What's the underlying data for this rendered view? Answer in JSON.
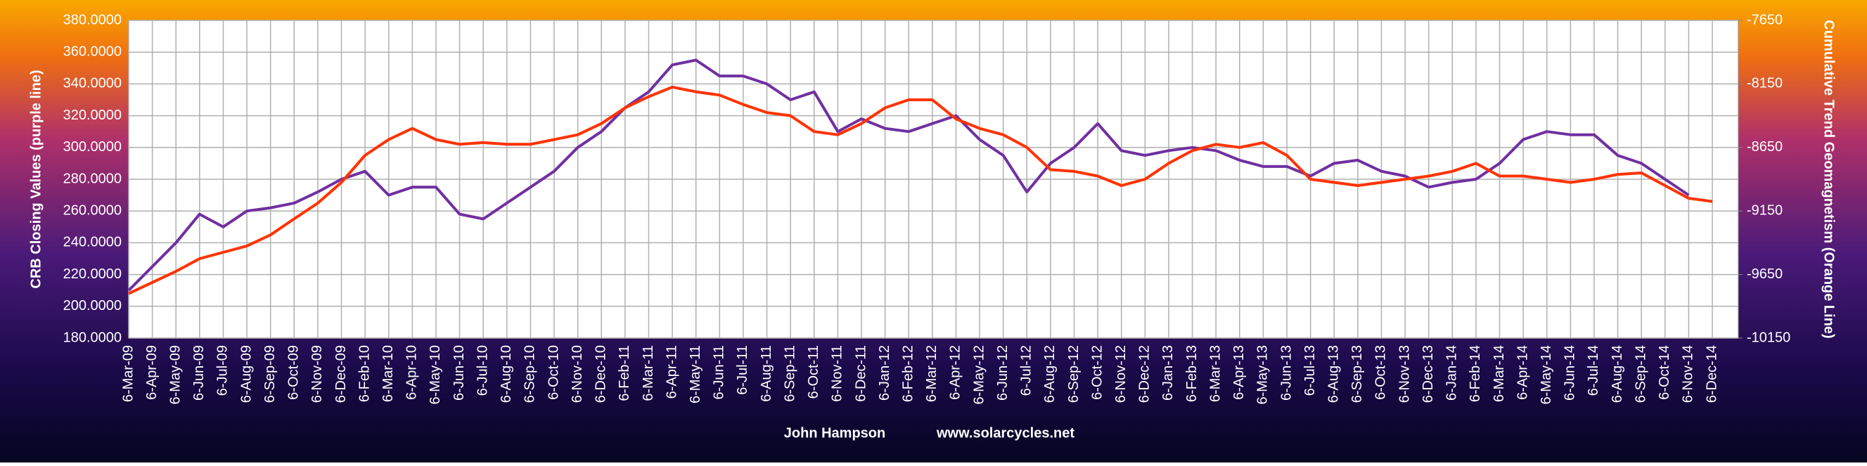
{
  "chart_data": {
    "type": "line",
    "categories": [
      "6-Mar-09",
      "6-Apr-09",
      "6-May-09",
      "6-Jun-09",
      "6-Jul-09",
      "6-Aug-09",
      "6-Sep-09",
      "6-Oct-09",
      "6-Nov-09",
      "6-Dec-09",
      "6-Feb-10",
      "6-Mar-10",
      "6-Apr-10",
      "6-May-10",
      "6-Jun-10",
      "6-Jul-10",
      "6-Aug-10",
      "6-Sep-10",
      "6-Oct-10",
      "6-Nov-10",
      "6-Dec-10",
      "6-Feb-11",
      "6-Mar-11",
      "6-Apr-11",
      "6-May-11",
      "6-Jun-11",
      "6-Jul-11",
      "6-Aug-11",
      "6-Sep-11",
      "6-Oct-11",
      "6-Nov-11",
      "6-Dec-11",
      "6-Jan-12",
      "6-Feb-12",
      "6-Mar-12",
      "6-Apr-12",
      "6-May-12",
      "6-Jun-12",
      "6-Jul-12",
      "6-Aug-12",
      "6-Sep-12",
      "6-Oct-12",
      "6-Nov-12",
      "6-Dec-12",
      "6-Jan-13",
      "6-Feb-13",
      "6-Mar-13",
      "6-Apr-13",
      "6-May-13",
      "6-Jun-13",
      "6-Jul-13",
      "6-Aug-13",
      "6-Sep-13",
      "6-Oct-13",
      "6-Nov-13",
      "6-Dec-13",
      "6-Jan-14",
      "6-Feb-14",
      "6-Mar-14",
      "6-Apr-14",
      "6-May-14",
      "6-Jun-14",
      "6-Jul-14",
      "6-Aug-14",
      "6-Sep-14",
      "6-Oct-14",
      "6-Nov-14",
      "6-Dec-14"
    ],
    "series": [
      {
        "color": "#7030a0",
        "values": [
          210,
          225,
          240,
          258,
          250,
          260,
          262,
          265,
          272,
          280,
          285,
          270,
          275,
          275,
          258,
          255,
          265,
          275,
          285,
          300,
          310,
          325,
          335,
          352,
          355,
          345,
          345,
          340,
          330,
          335,
          310,
          318,
          312,
          310,
          315,
          320,
          305,
          295,
          272,
          290,
          300,
          315,
          298,
          295,
          298,
          300,
          298,
          292,
          288,
          288,
          282,
          290,
          292,
          285,
          282,
          275,
          278,
          280,
          290,
          305,
          310,
          308,
          308,
          295,
          290,
          280,
          270,
          null
        ]
      },
      {
        "color": "#ff3300",
        "axis": "y2",
        "values": [
          -9800,
          -9712,
          -9625,
          -9525,
          -9475,
          -9425,
          -9338,
          -9212,
          -9088,
          -8925,
          -8712,
          -8588,
          -8500,
          -8588,
          -8625,
          -8612,
          -8625,
          -8625,
          -8588,
          -8550,
          -8462,
          -8338,
          -8250,
          -8175,
          -8212,
          -8238,
          -8312,
          -8375,
          -8400,
          -8525,
          -8550,
          -8462,
          -8338,
          -8275,
          -8275,
          -8425,
          -8500,
          -8550,
          -8650,
          -8825,
          -8838,
          -8875,
          -8950,
          -8900,
          -8775,
          -8675,
          -8625,
          -8650,
          -8612,
          -8712,
          -8900,
          -8925,
          -8950,
          -8925,
          -8900,
          -8875,
          -8838,
          -8775,
          -8875,
          -8875,
          -8900,
          -8925,
          -8900,
          -8862,
          -8850,
          -8950,
          -9050,
          -9075
        ]
      }
    ],
    "ylabel": "CRB Closing Values (purple line)",
    "y2label": "Cumulative Trend Geomagnetism (Orange Line)",
    "ylim": [
      180,
      380
    ],
    "yticks": [
      {
        "value": 180,
        "label": "180.0000"
      },
      {
        "value": 200,
        "label": "200.0000"
      },
      {
        "value": 220,
        "label": "220.0000"
      },
      {
        "value": 240,
        "label": "240.0000"
      },
      {
        "value": 260,
        "label": "260.0000"
      },
      {
        "value": 280,
        "label": "280.0000"
      },
      {
        "value": 300,
        "label": "300.0000"
      },
      {
        "value": 320,
        "label": "320.0000"
      },
      {
        "value": 340,
        "label": "340.0000"
      },
      {
        "value": 360,
        "label": "360.0000"
      },
      {
        "value": 380,
        "label": "380.0000"
      }
    ],
    "y2lim": [
      -10150,
      -7650
    ],
    "y2ticks": [
      -10150,
      -9650,
      -9150,
      -8650,
      -8150,
      -7650
    ],
    "grid": true,
    "credits": [
      "John Hampson",
      "www.solarcycles.net"
    ]
  }
}
